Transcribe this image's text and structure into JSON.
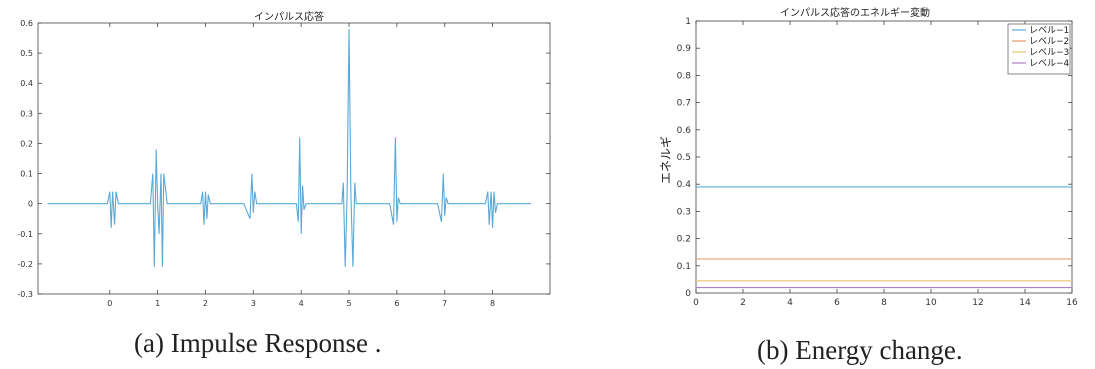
{
  "captions": {
    "a": "(a) Impulse Response .",
    "b": "(b) Energy change."
  },
  "chart_data": [
    {
      "type": "line",
      "title": "インパルス応答",
      "xlabel": "",
      "ylabel": "",
      "xlim": [
        -1.5,
        9.2
      ],
      "ylim": [
        -0.3,
        0.6
      ],
      "xticks": [
        0,
        1,
        2,
        3,
        4,
        5,
        6,
        7,
        8
      ],
      "yticks": [
        -0.3,
        -0.2,
        -0.1,
        0,
        0.1,
        0.2,
        0.3,
        0.4,
        0.5,
        0.6
      ],
      "grid": false,
      "series": [
        {
          "color": "#5aa9d6",
          "x": [
            -1.3,
            -1.0,
            -0.05,
            0.0,
            0.03,
            0.06,
            0.1,
            0.13,
            0.18,
            0.3,
            0.85,
            0.9,
            0.93,
            0.97,
            1.0,
            1.03,
            1.07,
            1.1,
            1.13,
            1.2,
            1.9,
            1.94,
            1.97,
            2.0,
            2.03,
            2.06,
            2.1,
            2.8,
            2.93,
            2.97,
            3.0,
            3.03,
            3.07,
            3.3,
            3.9,
            3.94,
            3.97,
            4.0,
            4.03,
            4.06,
            4.1,
            4.85,
            4.88,
            4.92,
            4.96,
            5.0,
            5.04,
            5.08,
            5.12,
            5.15,
            5.85,
            5.93,
            5.97,
            6.0,
            6.03,
            6.07,
            6.15,
            6.85,
            6.93,
            6.97,
            7.0,
            7.03,
            7.07,
            7.3,
            7.85,
            7.9,
            7.93,
            7.97,
            8.0,
            8.03,
            8.06,
            8.1,
            8.8
          ],
          "y": [
            0,
            0,
            0,
            0.04,
            -0.08,
            0.04,
            -0.07,
            0.04,
            0,
            0,
            0,
            0.1,
            -0.21,
            0.18,
            0.0,
            -0.1,
            0.1,
            -0.21,
            0.1,
            0,
            0,
            0.04,
            -0.07,
            0.04,
            -0.05,
            0.03,
            0,
            0,
            -0.05,
            0.1,
            -0.03,
            0.04,
            0,
            0,
            0,
            -0.06,
            0.22,
            -0.1,
            0.06,
            -0.02,
            0,
            0,
            0.07,
            -0.21,
            0.03,
            0.58,
            0.03,
            -0.21,
            0.07,
            0,
            0,
            -0.07,
            0.22,
            -0.06,
            0.02,
            0,
            0,
            0,
            -0.06,
            0.1,
            -0.04,
            0.02,
            0,
            0,
            0,
            0.04,
            -0.07,
            0.04,
            -0.08,
            0.04,
            -0.03,
            0,
            0
          ]
        }
      ]
    },
    {
      "type": "line",
      "title": "インパルス応答のエネルギー変動",
      "xlabel": "",
      "ylabel": "エネルギ",
      "xlim": [
        0,
        16
      ],
      "ylim": [
        0,
        1
      ],
      "xticks": [
        0,
        2,
        4,
        6,
        8,
        10,
        12,
        14,
        16
      ],
      "yticks": [
        0,
        0.1,
        0.2,
        0.3,
        0.4,
        0.5,
        0.6,
        0.7,
        0.8,
        0.9,
        1
      ],
      "grid": false,
      "legend": "top-right",
      "series": [
        {
          "name": "レベル−1",
          "color": "#5aa9d6",
          "x": [
            0,
            16
          ],
          "y": [
            0.39,
            0.39
          ]
        },
        {
          "name": "レベル−2",
          "color": "#e8956a",
          "x": [
            0,
            16
          ],
          "y": [
            0.125,
            0.125
          ]
        },
        {
          "name": "レベル−3",
          "color": "#e9c66a",
          "x": [
            0,
            16
          ],
          "y": [
            0.045,
            0.045
          ]
        },
        {
          "name": "レベル−4",
          "color": "#b07cc6",
          "x": [
            0,
            16
          ],
          "y": [
            0.02,
            0.02
          ]
        }
      ]
    }
  ]
}
